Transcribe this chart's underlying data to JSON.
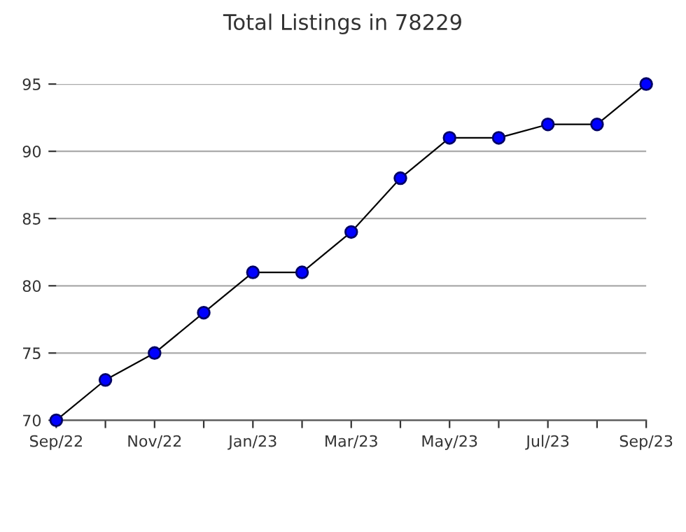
{
  "chart_data": {
    "type": "line",
    "title": "Total Listings in 78229",
    "categories": [
      "Sep/22",
      null,
      "Nov/22",
      null,
      "Jan/23",
      null,
      "Mar/23",
      null,
      "May/23",
      null,
      "Jul/23",
      null,
      "Sep/23"
    ],
    "series": [
      {
        "color": "#0000ff",
        "values": [
          70,
          73,
          75,
          78,
          81,
          81,
          84,
          88,
          91,
          91,
          92,
          92,
          95
        ]
      }
    ],
    "ylim": [
      70,
      95
    ],
    "yticks": [
      70,
      75,
      80,
      85,
      90,
      95
    ],
    "grid": "y",
    "marker": "circle",
    "line_style": "solid"
  }
}
